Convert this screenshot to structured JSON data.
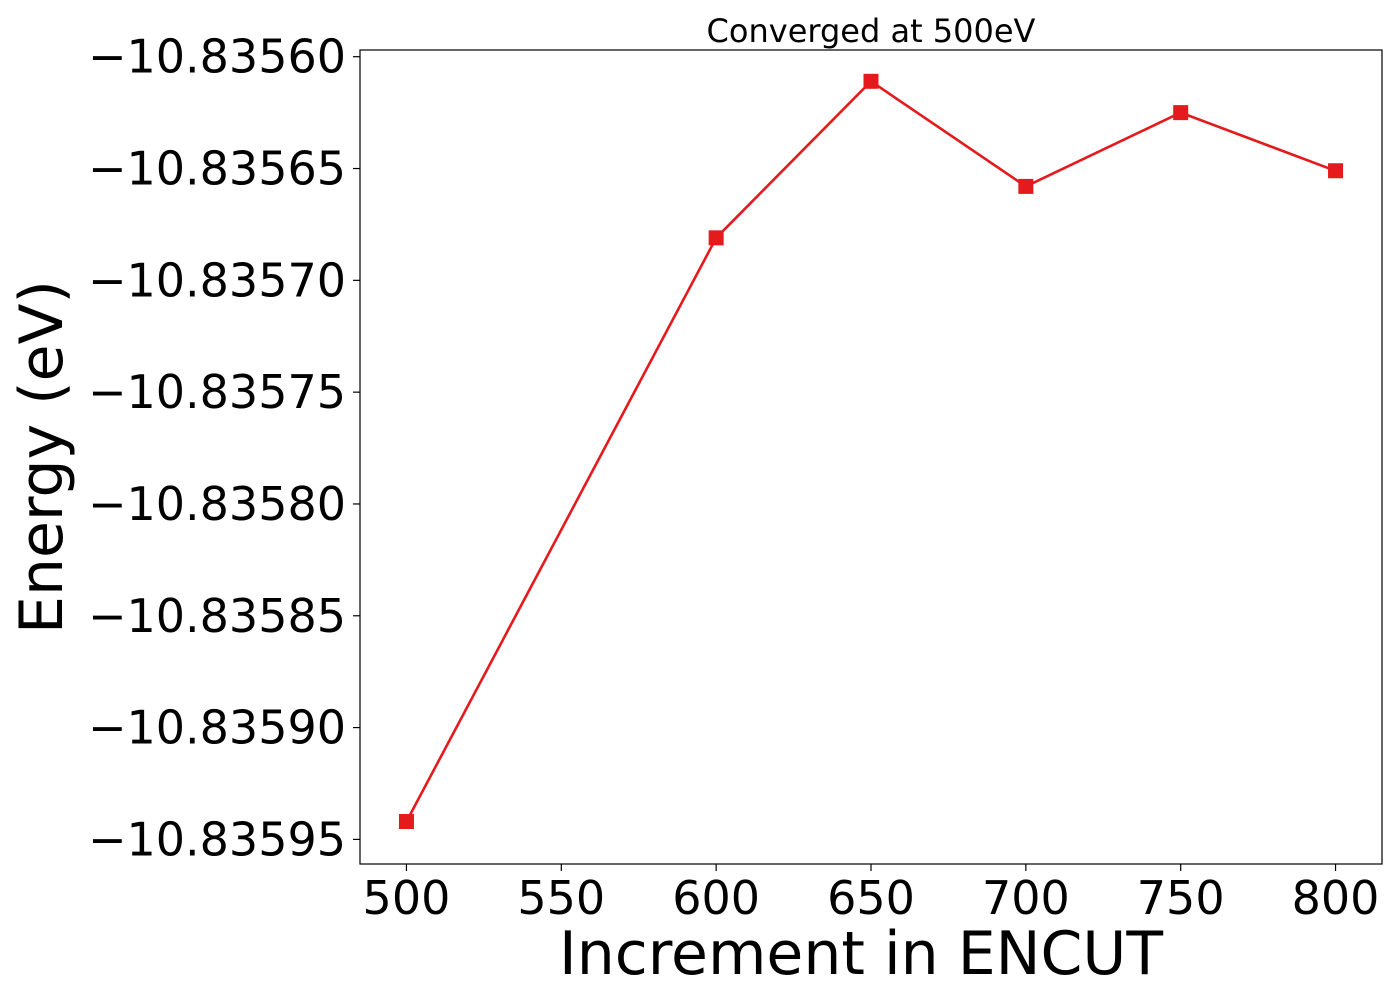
{
  "chart_data": {
    "type": "line",
    "title": "Converged at 500eV",
    "xlabel": "Increment in ENCUT",
    "ylabel": "Energy (eV)",
    "x": [
      500,
      600,
      650,
      700,
      750,
      800
    ],
    "series": [
      {
        "values": [
          -10.835942,
          -10.835681,
          -10.835611,
          -10.835658,
          -10.835625,
          -10.835651
        ],
        "color": "#e41a1c",
        "marker": "square"
      }
    ],
    "xlim": [
      485,
      815
    ],
    "ylim": [
      -10.835961,
      -10.835597
    ],
    "xticks": [
      500,
      550,
      600,
      650,
      700,
      750,
      800
    ],
    "xtick_labels": [
      "500",
      "550",
      "600",
      "650",
      "700",
      "750",
      "800"
    ],
    "yticks": [
      -10.8356,
      -10.83565,
      -10.8357,
      -10.83575,
      -10.8358,
      -10.83585,
      -10.8359,
      -10.83595
    ],
    "ytick_labels": [
      "−10.83560",
      "−10.83565",
      "−10.83570",
      "−10.83575",
      "−10.83580",
      "−10.83585",
      "−10.83590",
      "−10.83595"
    ],
    "grid": false,
    "legend": "none"
  }
}
